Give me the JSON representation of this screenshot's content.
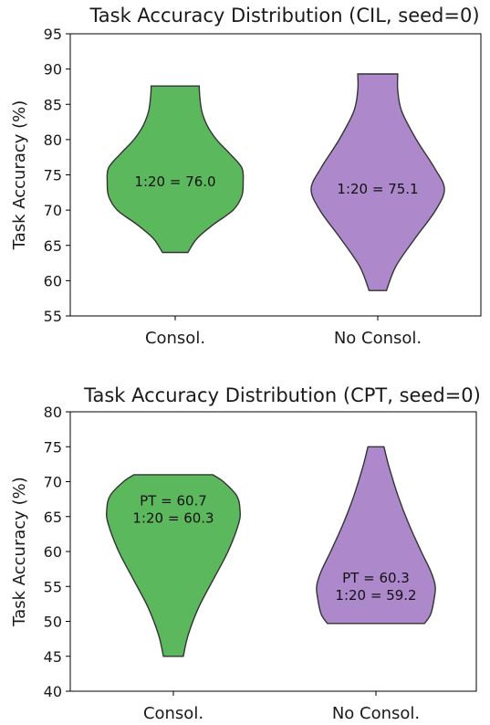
{
  "chart_data": [
    {
      "type": "violin",
      "title": "Task Accuracy Distribution (CIL, seed=0)",
      "ylabel": "Task Accuracy (%)",
      "xlabel": "",
      "ylim": [
        55,
        95
      ],
      "yticks": [
        55,
        60,
        65,
        70,
        75,
        80,
        85,
        90,
        95
      ],
      "categories": [
        "Consol.",
        "No Consol."
      ],
      "colors": [
        "#5cb85c",
        "#ad89cc"
      ],
      "violins": [
        {
          "category": "Consol.",
          "min": 64.0,
          "max": 87.6,
          "profile": [
            [
              64.0,
              0.19
            ],
            [
              66.0,
              0.33
            ],
            [
              68.0,
              0.58
            ],
            [
              70.0,
              0.87
            ],
            [
              72.0,
              1.0
            ],
            [
              74.0,
              1.02
            ],
            [
              76.0,
              1.0
            ],
            [
              78.0,
              0.82
            ],
            [
              80.0,
              0.62
            ],
            [
              82.0,
              0.48
            ],
            [
              84.0,
              0.4
            ],
            [
              86.0,
              0.37
            ],
            [
              87.6,
              0.36
            ]
          ],
          "annotations": [
            "1:20 = 76.0"
          ]
        },
        {
          "category": "No Consol.",
          "min": 58.6,
          "max": 89.3,
          "profile": [
            [
              58.6,
              0.13
            ],
            [
              62.0,
              0.27
            ],
            [
              66.0,
              0.56
            ],
            [
              70.0,
              0.87
            ],
            [
              73.0,
              1.0
            ],
            [
              76.0,
              0.85
            ],
            [
              80.0,
              0.58
            ],
            [
              84.0,
              0.36
            ],
            [
              87.0,
              0.3
            ],
            [
              89.3,
              0.3
            ]
          ],
          "annotations": [
            "1:20 = 75.1"
          ]
        }
      ]
    },
    {
      "type": "violin",
      "title": "Task Accuracy Distribution (CPT, seed=0)",
      "ylabel": "Task Accuracy (%)",
      "xlabel": "",
      "ylim": [
        40,
        80
      ],
      "yticks": [
        40,
        45,
        50,
        55,
        60,
        65,
        70,
        75,
        80
      ],
      "categories": [
        "Consol.",
        "No Consol."
      ],
      "colors": [
        "#5cb85c",
        "#ad89cc"
      ],
      "violins": [
        {
          "category": "Consol.",
          "min": 45.0,
          "max": 71.0,
          "profile": [
            [
              45.0,
              0.15
            ],
            [
              48.0,
              0.22
            ],
            [
              52.0,
              0.38
            ],
            [
              56.0,
              0.6
            ],
            [
              60.0,
              0.82
            ],
            [
              64.0,
              0.98
            ],
            [
              66.0,
              1.0
            ],
            [
              68.0,
              0.95
            ],
            [
              70.0,
              0.75
            ],
            [
              71.0,
              0.59
            ]
          ],
          "annotations": [
            "PT = 60.7",
            "1:20 = 60.3"
          ]
        },
        {
          "category": "No Consol.",
          "min": 49.7,
          "max": 75.0,
          "profile": [
            [
              49.7,
              0.73
            ],
            [
              51.0,
              0.82
            ],
            [
              53.0,
              0.87
            ],
            [
              55.0,
              0.89
            ],
            [
              57.0,
              0.83
            ],
            [
              60.0,
              0.68
            ],
            [
              64.0,
              0.49
            ],
            [
              68.0,
              0.33
            ],
            [
              72.0,
              0.2
            ],
            [
              75.0,
              0.12
            ]
          ],
          "annotations": [
            "PT = 60.3",
            "1:20 = 59.2"
          ]
        }
      ]
    }
  ]
}
